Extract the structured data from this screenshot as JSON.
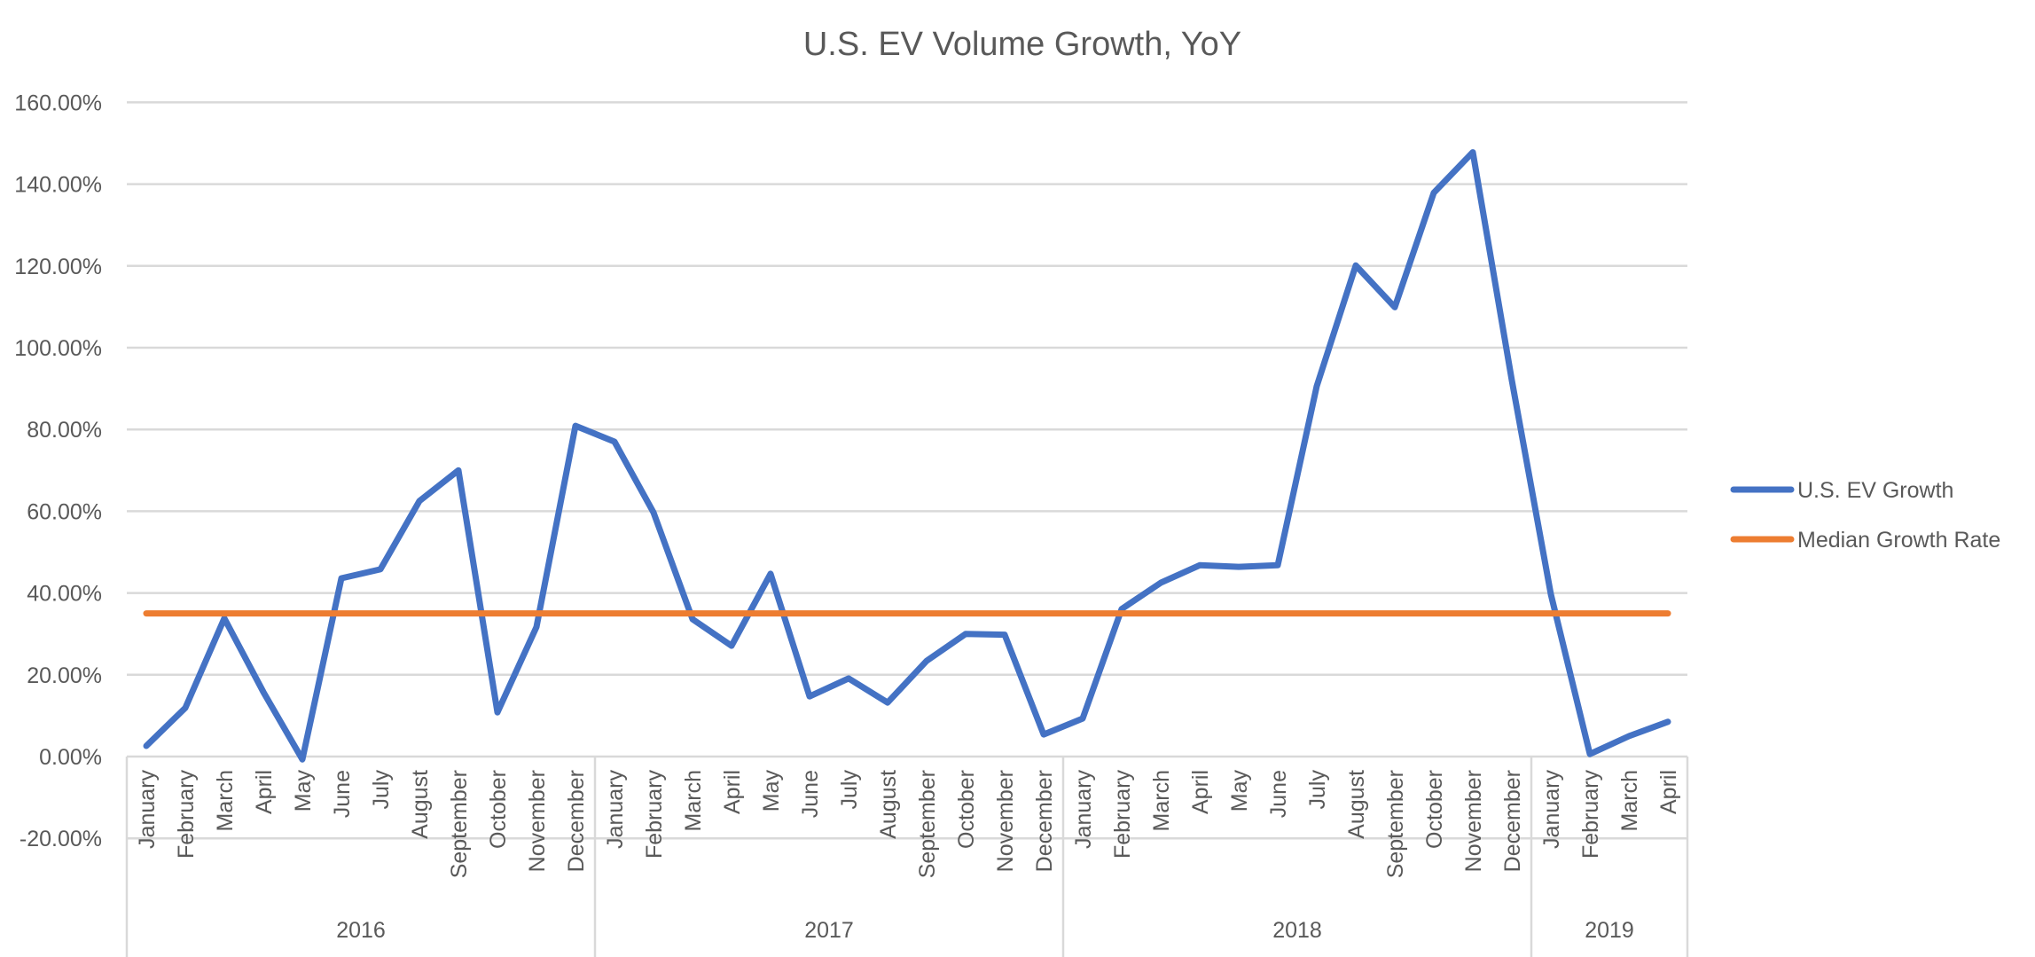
{
  "chart_data": {
    "type": "line",
    "title": "U.S. EV Volume Growth, YoY",
    "xlabel": "",
    "ylabel": "",
    "ylim": [
      -0.2,
      1.6
    ],
    "y_ticks": [
      -0.2,
      0,
      0.2,
      0.4,
      0.6,
      0.8,
      1.0,
      1.2,
      1.4,
      1.6
    ],
    "y_tick_labels": [
      "-20.00%",
      "0.00%",
      "20.00%",
      "40.00%",
      "60.00%",
      "80.00%",
      "100.00%",
      "120.00%",
      "140.00%",
      "160.00%"
    ],
    "grid": true,
    "legend_position": "right",
    "year_groups": [
      {
        "label": "2016",
        "months": [
          "January",
          "February",
          "March",
          "April",
          "May",
          "June",
          "July",
          "August",
          "September",
          "October",
          "November",
          "December"
        ]
      },
      {
        "label": "2017",
        "months": [
          "January",
          "February",
          "March",
          "April",
          "May",
          "June",
          "July",
          "August",
          "September",
          "October",
          "November",
          "December"
        ]
      },
      {
        "label": "2018",
        "months": [
          "January",
          "February",
          "March",
          "April",
          "May",
          "June",
          "July",
          "August",
          "September",
          "October",
          "November",
          "December"
        ]
      },
      {
        "label": "2019",
        "months": [
          "January",
          "February",
          "March",
          "April"
        ]
      }
    ],
    "series": [
      {
        "name": "U.S. EV Growth",
        "color": "#4472C4",
        "values": [
          0.026,
          0.119,
          0.338,
          0.158,
          -0.007,
          0.436,
          0.458,
          0.625,
          0.7,
          0.108,
          0.317,
          0.809,
          0.77,
          0.597,
          0.336,
          0.271,
          0.447,
          0.147,
          0.191,
          0.132,
          0.234,
          0.3,
          0.298,
          0.054,
          0.093,
          0.361,
          0.425,
          0.468,
          0.464,
          0.468,
          0.906,
          1.201,
          1.099,
          1.379,
          1.478,
          0.92,
          0.397,
          0.006,
          0.05,
          0.085
        ]
      },
      {
        "name": "Median Growth Rate",
        "color": "#ED7D31",
        "values": [
          0.35,
          0.35,
          0.35,
          0.35,
          0.35,
          0.35,
          0.35,
          0.35,
          0.35,
          0.35,
          0.35,
          0.35,
          0.35,
          0.35,
          0.35,
          0.35,
          0.35,
          0.35,
          0.35,
          0.35,
          0.35,
          0.35,
          0.35,
          0.35,
          0.35,
          0.35,
          0.35,
          0.35,
          0.35,
          0.35,
          0.35,
          0.35,
          0.35,
          0.35,
          0.35,
          0.35,
          0.35,
          0.35,
          0.35,
          0.35
        ]
      }
    ]
  }
}
